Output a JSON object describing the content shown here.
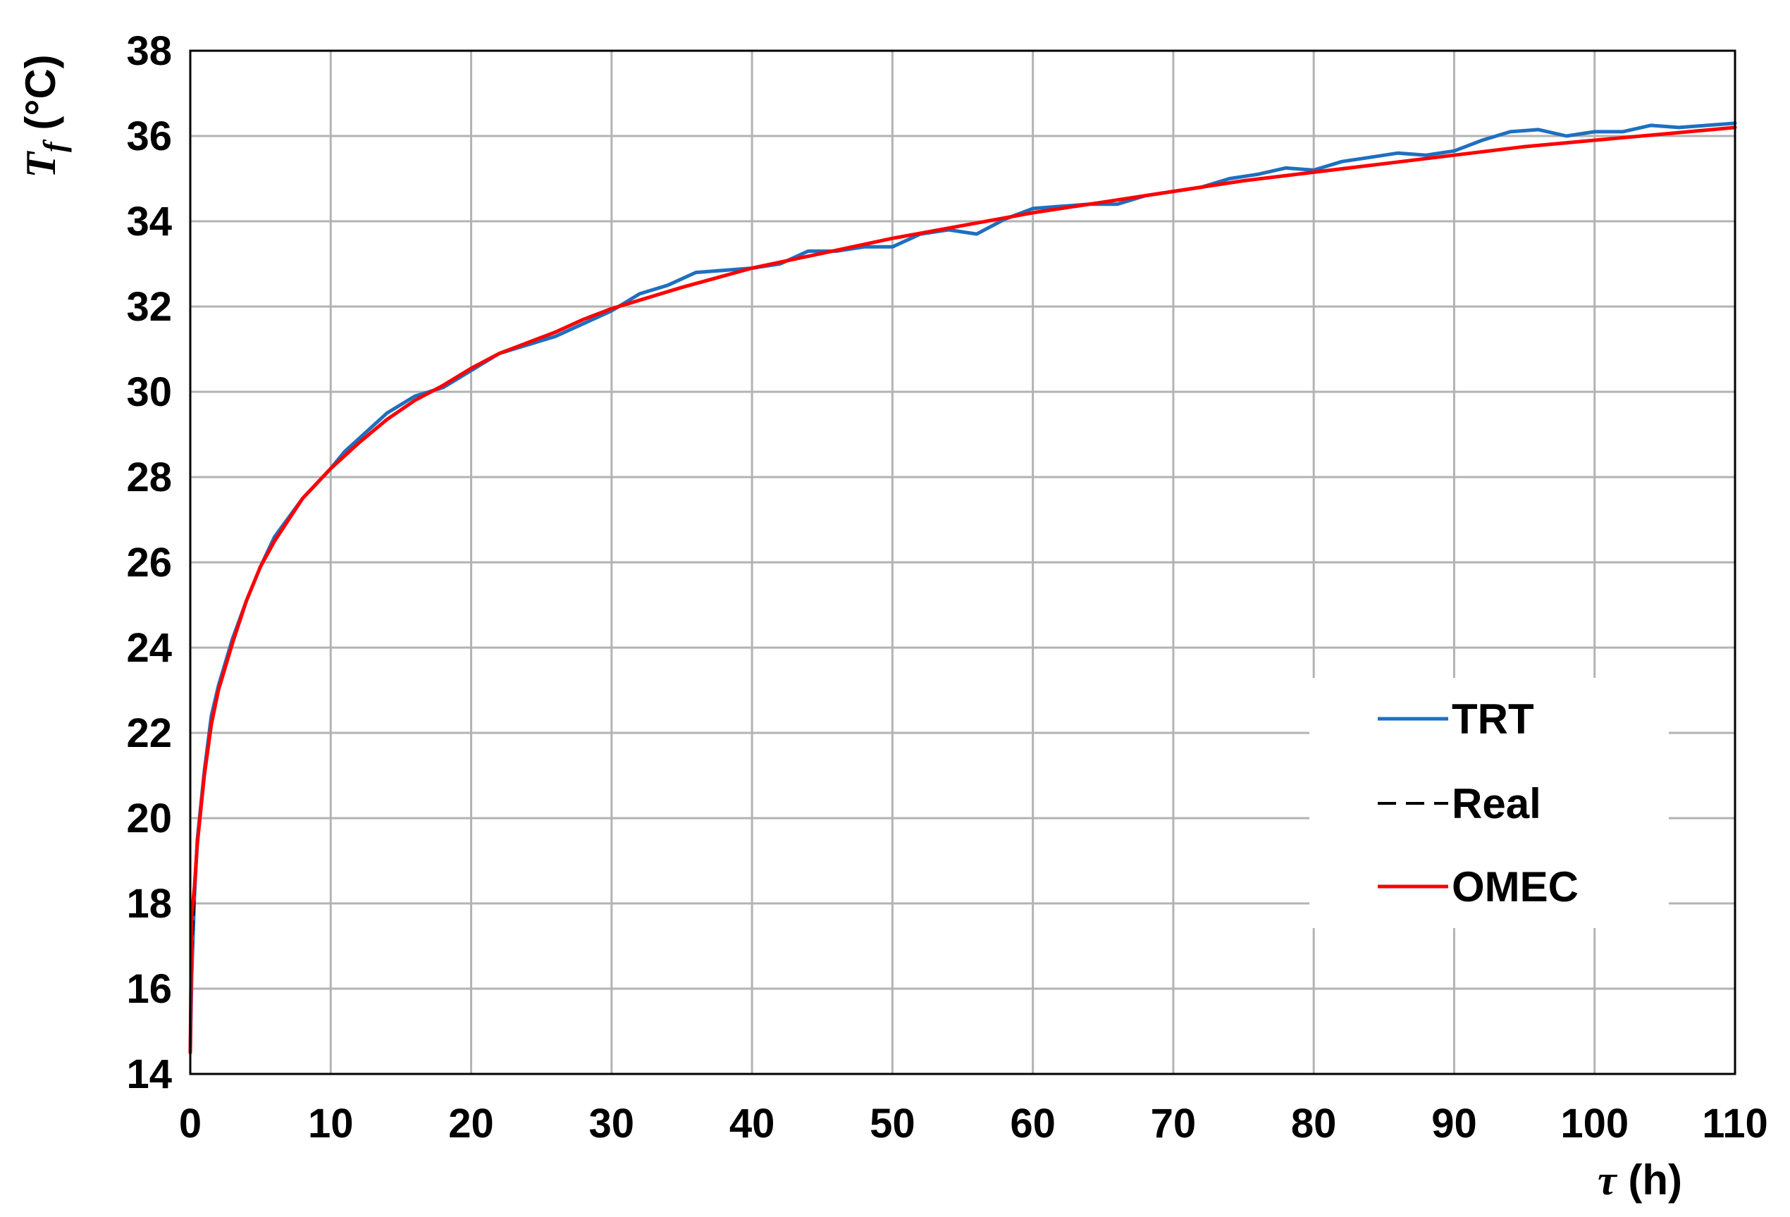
{
  "chart_data": {
    "type": "line",
    "xlabel": {
      "symbol": "τ",
      "unit": " (h)"
    },
    "ylabel": {
      "symbol": "T",
      "subscript": "f",
      "unit": " (°C)"
    },
    "xlim": [
      0,
      110
    ],
    "ylim": [
      14,
      38
    ],
    "xticks": [
      0,
      10,
      20,
      30,
      40,
      50,
      60,
      70,
      80,
      90,
      100,
      110
    ],
    "yticks": [
      14,
      16,
      18,
      20,
      22,
      24,
      26,
      28,
      30,
      32,
      34,
      36,
      38
    ],
    "grid": true,
    "legend_position": "right",
    "series": [
      {
        "name": "TRT",
        "color": "#1f6fbf",
        "style": "solid",
        "x": [
          0,
          0.1,
          0.3,
          0.5,
          1,
          1.5,
          2,
          3,
          4,
          5,
          6,
          8,
          10,
          11,
          12,
          14,
          16,
          18,
          20,
          22,
          24,
          26,
          28,
          30,
          32,
          34,
          36,
          38,
          40,
          42,
          44,
          46,
          48,
          50,
          52,
          54,
          56,
          58,
          60,
          62,
          64,
          66,
          68,
          70,
          72,
          74,
          76,
          78,
          80,
          82,
          84,
          86,
          88,
          90,
          92,
          94,
          96,
          98,
          100,
          102,
          104,
          106,
          108,
          110
        ],
        "values": [
          14.5,
          16.3,
          18.2,
          19.5,
          21.1,
          22.4,
          23.1,
          24.2,
          25.1,
          25.9,
          26.6,
          27.5,
          28.2,
          28.6,
          28.9,
          29.5,
          29.9,
          30.1,
          30.5,
          30.9,
          31.1,
          31.3,
          31.6,
          31.9,
          32.3,
          32.5,
          32.8,
          32.85,
          32.9,
          33.0,
          33.3,
          33.3,
          33.4,
          33.4,
          33.7,
          33.8,
          33.7,
          34.05,
          34.3,
          34.35,
          34.4,
          34.4,
          34.6,
          34.7,
          34.8,
          35.0,
          35.1,
          35.25,
          35.2,
          35.4,
          35.5,
          35.6,
          35.55,
          35.65,
          35.9,
          36.1,
          36.15,
          36.0,
          36.1,
          36.1,
          36.25,
          36.2,
          36.25,
          36.3
        ]
      },
      {
        "name": "Real",
        "color": "#000000",
        "style": "dashed",
        "x": [
          0,
          0.1,
          0.3,
          0.5,
          1,
          1.5,
          2,
          3,
          4,
          5,
          6,
          8,
          10,
          12,
          14,
          16,
          18,
          20,
          22,
          24,
          26,
          28,
          30,
          35,
          40,
          45,
          50,
          55,
          60,
          65,
          70,
          75,
          80,
          85,
          90,
          95,
          100,
          105,
          110
        ],
        "values": [
          14.5,
          16.9,
          18.3,
          19.4,
          21.0,
          22.2,
          23.0,
          24.1,
          25.1,
          25.9,
          26.5,
          27.5,
          28.2,
          28.8,
          29.35,
          29.8,
          30.15,
          30.55,
          30.9,
          31.15,
          31.4,
          31.7,
          31.95,
          32.45,
          32.9,
          33.25,
          33.6,
          33.9,
          34.2,
          34.45,
          34.7,
          34.95,
          35.15,
          35.35,
          35.55,
          35.75,
          35.9,
          36.05,
          36.2
        ]
      },
      {
        "name": "OMEC",
        "color": "#ff0000",
        "style": "solid",
        "x": [
          0,
          0.1,
          0.3,
          0.5,
          1,
          1.5,
          2,
          3,
          4,
          5,
          6,
          8,
          10,
          12,
          14,
          16,
          18,
          20,
          22,
          24,
          26,
          28,
          30,
          35,
          40,
          45,
          50,
          55,
          60,
          65,
          70,
          75,
          80,
          85,
          90,
          95,
          100,
          105,
          110
        ],
        "values": [
          14.5,
          17.7,
          18.4,
          19.4,
          21.0,
          22.2,
          23.0,
          24.1,
          25.1,
          25.9,
          26.5,
          27.5,
          28.2,
          28.8,
          29.35,
          29.8,
          30.15,
          30.55,
          30.9,
          31.15,
          31.4,
          31.7,
          31.95,
          32.45,
          32.9,
          33.25,
          33.6,
          33.9,
          34.2,
          34.45,
          34.7,
          34.95,
          35.15,
          35.35,
          35.55,
          35.75,
          35.9,
          36.05,
          36.2
        ]
      }
    ]
  }
}
